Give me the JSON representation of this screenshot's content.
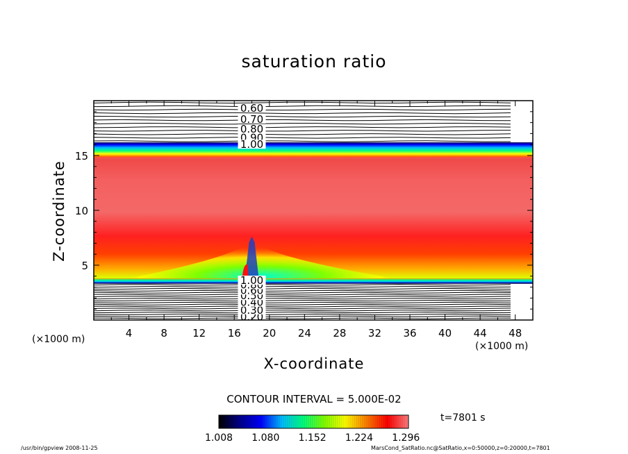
{
  "app": {
    "footer_left": "/usr/bin/gpview  2008-11-25",
    "footer_right": "MarsCond_SatRatio.nc@SatRatio,x=0:50000,z=0:20000,t=7801"
  },
  "chart_data": {
    "type": "heatmap",
    "title": "saturation ratio",
    "xlabel": "X-coordinate",
    "ylabel": "Z-coordinate",
    "x_unit": "(×1000 m)",
    "x_unit_right": "(×1000 m)",
    "xlim": [
      0,
      50
    ],
    "ylim": [
      0,
      20
    ],
    "x_ticks": [
      4,
      8,
      12,
      16,
      20,
      24,
      28,
      32,
      36,
      40,
      44,
      48
    ],
    "y_ticks": [
      5,
      10,
      15
    ],
    "contour_interval": "CONTOUR INTERVAL = 5.000E-02",
    "time_label": "t=7801 s",
    "colorbar": {
      "min": 1.008,
      "max": 1.3,
      "tick_labels": [
        "1.008",
        "1.080",
        "1.152",
        "1.224",
        "1.296"
      ],
      "colors": [
        "#000000",
        "#00008b",
        "#0000ff",
        "#00bfff",
        "#00ff7f",
        "#7fff00",
        "#ffff00",
        "#ff7f00",
        "#ff0000",
        "#ff7f7f"
      ]
    },
    "upper_contour_labels": [
      {
        "label": "0.60",
        "z": 19.3
      },
      {
        "label": "0.70",
        "z": 18.3
      },
      {
        "label": "0.80",
        "z": 17.4
      },
      {
        "label": "0.90",
        "z": 16.6
      },
      {
        "label": "1.00",
        "z": 16.0
      }
    ],
    "lower_contour_labels": [
      {
        "label": "0.20",
        "z": 0.3
      },
      {
        "label": "0.30",
        "z": 0.9
      },
      {
        "label": "0.40",
        "z": 1.6
      },
      {
        "label": "0.50",
        "z": 2.2
      },
      {
        "label": "0.60",
        "z": 2.7
      },
      {
        "label": "0.80",
        "z": 3.2
      },
      {
        "label": "1.00",
        "z": 3.6
      }
    ],
    "field_regions": [
      {
        "name": "upper-unsaturated",
        "z_from": 16.2,
        "z_to": 20.0,
        "fill": "#ffffff"
      },
      {
        "name": "top-gradient",
        "z_from": 14.8,
        "z_to": 16.2,
        "fill": "gradient"
      },
      {
        "name": "supersaturated-layer",
        "z_from": 3.8,
        "z_to": 14.8,
        "fill": "#f05050"
      },
      {
        "name": "bottom-gradient",
        "z_from": 3.3,
        "z_to": 3.8,
        "fill": "gradient"
      },
      {
        "name": "lower-unsaturated",
        "z_from": 0.0,
        "z_to": 3.3,
        "fill": "#ffffff"
      }
    ],
    "plume": {
      "x_center": 18.0,
      "z_top": 7.6,
      "z_bottom": 3.8
    }
  }
}
